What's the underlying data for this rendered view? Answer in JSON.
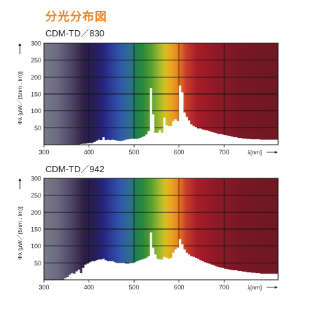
{
  "title": "分光分布図",
  "colors": {
    "title": "#e8862a"
  },
  "chart_data": [
    {
      "type": "area",
      "title": "CDM-TD／830",
      "xlabel": "λ[nm]",
      "ylabel": "Φλ [μW／(5nm . lm)]",
      "xlim": [
        300,
        820
      ],
      "ylim": [
        0,
        300
      ],
      "xticks": [
        300,
        400,
        500,
        600,
        700
      ],
      "yticks": [
        50,
        100,
        150,
        200,
        250,
        300
      ],
      "grid": true,
      "x": [
        300,
        360,
        365,
        370,
        375,
        380,
        385,
        390,
        395,
        400,
        405,
        410,
        415,
        420,
        425,
        430,
        435,
        440,
        445,
        450,
        455,
        460,
        465,
        470,
        475,
        480,
        485,
        490,
        495,
        500,
        505,
        510,
        515,
        520,
        525,
        530,
        535,
        540,
        545,
        550,
        555,
        560,
        565,
        570,
        575,
        580,
        585,
        590,
        595,
        600,
        605,
        610,
        615,
        620,
        625,
        630,
        635,
        640,
        645,
        650,
        655,
        660,
        665,
        670,
        675,
        680,
        685,
        690,
        695,
        700,
        705,
        710,
        715,
        720,
        730,
        740,
        750,
        760,
        770,
        780
      ],
      "values": [
        0,
        0,
        0,
        0,
        0,
        2,
        3,
        3,
        4,
        5,
        5,
        8,
        12,
        15,
        14,
        22,
        14,
        15,
        14,
        15,
        14,
        12,
        11,
        11,
        13,
        15,
        16,
        17,
        18,
        17,
        17,
        20,
        22,
        25,
        30,
        40,
        168,
        90,
        35,
        35,
        42,
        35,
        80,
        58,
        55,
        55,
        70,
        75,
        70,
        175,
        155,
        95,
        82,
        72,
        60,
        55,
        52,
        48,
        48,
        45,
        43,
        42,
        40,
        38,
        36,
        34,
        32,
        32,
        30,
        28,
        27,
        26,
        24,
        22,
        20,
        18,
        17,
        16,
        16,
        15
      ]
    },
    {
      "type": "area",
      "title": "CDM-TD／942",
      "xlabel": "λ[nm]",
      "ylabel": "Φλ [μW／(5nm . lm)]",
      "xlim": [
        300,
        820
      ],
      "ylim": [
        0,
        300
      ],
      "xticks": [
        300,
        400,
        500,
        600,
        700
      ],
      "yticks": [
        50,
        100,
        150,
        200,
        250,
        300
      ],
      "grid": true,
      "x": [
        300,
        340,
        345,
        350,
        355,
        360,
        365,
        370,
        375,
        380,
        385,
        390,
        395,
        400,
        405,
        410,
        415,
        420,
        425,
        430,
        435,
        440,
        445,
        450,
        455,
        460,
        465,
        470,
        475,
        480,
        485,
        490,
        495,
        500,
        505,
        510,
        515,
        520,
        525,
        530,
        535,
        540,
        545,
        550,
        555,
        560,
        565,
        570,
        575,
        580,
        585,
        590,
        595,
        600,
        605,
        610,
        615,
        620,
        625,
        630,
        635,
        640,
        645,
        650,
        655,
        660,
        665,
        670,
        675,
        680,
        685,
        690,
        695,
        700,
        705,
        710,
        715,
        720,
        730,
        740,
        750,
        760,
        770,
        780
      ],
      "values": [
        0,
        0,
        5,
        8,
        15,
        20,
        18,
        25,
        30,
        20,
        35,
        45,
        48,
        52,
        55,
        55,
        58,
        60,
        60,
        62,
        58,
        55,
        55,
        55,
        52,
        50,
        50,
        50,
        50,
        48,
        48,
        50,
        50,
        52,
        55,
        58,
        60,
        62,
        65,
        70,
        140,
        95,
        75,
        62,
        60,
        60,
        68,
        65,
        62,
        65,
        80,
        90,
        95,
        120,
        105,
        90,
        80,
        75,
        70,
        68,
        65,
        62,
        58,
        55,
        52,
        50,
        48,
        45,
        43,
        40,
        38,
        36,
        35,
        33,
        32,
        30,
        29,
        28,
        26,
        24,
        22,
        21,
        20,
        18
      ]
    }
  ]
}
